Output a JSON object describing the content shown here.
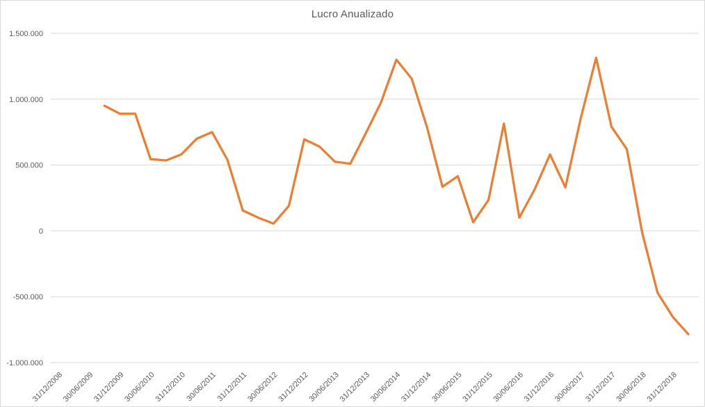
{
  "chart_data": {
    "type": "line",
    "title": "Lucro Anualizado",
    "legend": false,
    "grid": true,
    "colors": {
      "line": "#ED7D31",
      "gridline": "#D9D9D9",
      "text": "#595959",
      "border": "#D9D9D9",
      "background": "#FFFFFF"
    },
    "y_axis": {
      "min": -1000000,
      "max": 1500000,
      "step": 500000,
      "tick_labels": [
        "1.500.000",
        "1.000.000",
        "500.000",
        "0",
        "-500.000",
        "-1.000.000"
      ],
      "tick_values": [
        1500000,
        1000000,
        500000,
        0,
        -500000,
        -1000000
      ]
    },
    "x_axis": {
      "categories_total": 42,
      "first_category": "31/12/2008",
      "frequency": "quarterly",
      "tick_every": 2,
      "tick_labels": [
        "31/12/2008",
        "30/06/2009",
        "31/12/2009",
        "30/06/2010",
        "31/12/2010",
        "30/06/2011",
        "31/12/2011",
        "30/06/2012",
        "31/12/2012",
        "30/06/2013",
        "31/12/2013",
        "30/06/2014",
        "31/12/2014",
        "30/06/2015",
        "31/12/2015",
        "30/06/2016",
        "31/12/2016",
        "30/06/2017",
        "31/12/2017",
        "30/06/2018",
        "31/12/2018"
      ],
      "data_start_index": 3
    },
    "series": [
      {
        "name": "Lucro Anualizado",
        "color": "#ED7D31",
        "points": [
          {
            "date": "30/09/2009",
            "value": 950000
          },
          {
            "date": "31/12/2009",
            "value": 890000
          },
          {
            "date": "31/03/2010",
            "value": 890000
          },
          {
            "date": "30/06/2010",
            "value": 545000
          },
          {
            "date": "30/09/2010",
            "value": 535000
          },
          {
            "date": "31/12/2010",
            "value": 580000
          },
          {
            "date": "31/03/2011",
            "value": 700000
          },
          {
            "date": "30/06/2011",
            "value": 750000
          },
          {
            "date": "30/09/2011",
            "value": 540000
          },
          {
            "date": "31/12/2011",
            "value": 155000
          },
          {
            "date": "31/03/2012",
            "value": 100000
          },
          {
            "date": "30/06/2012",
            "value": 55000
          },
          {
            "date": "30/09/2012",
            "value": 190000
          },
          {
            "date": "31/12/2012",
            "value": 695000
          },
          {
            "date": "31/03/2013",
            "value": 640000
          },
          {
            "date": "30/06/2013",
            "value": 525000
          },
          {
            "date": "30/09/2013",
            "value": 510000
          },
          {
            "date": "31/12/2013",
            "value": 740000
          },
          {
            "date": "31/03/2014",
            "value": 975000
          },
          {
            "date": "30/06/2014",
            "value": 1300000
          },
          {
            "date": "30/09/2014",
            "value": 1155000
          },
          {
            "date": "31/12/2014",
            "value": 785000
          },
          {
            "date": "31/03/2015",
            "value": 335000
          },
          {
            "date": "30/06/2015",
            "value": 415000
          },
          {
            "date": "30/09/2015",
            "value": 65000
          },
          {
            "date": "31/12/2015",
            "value": 235000
          },
          {
            "date": "31/03/2016",
            "value": 815000
          },
          {
            "date": "30/06/2016",
            "value": 100000
          },
          {
            "date": "30/09/2016",
            "value": 315000
          },
          {
            "date": "31/12/2016",
            "value": 580000
          },
          {
            "date": "31/03/2017",
            "value": 330000
          },
          {
            "date": "30/06/2017",
            "value": 855000
          },
          {
            "date": "30/09/2017",
            "value": 1315000
          },
          {
            "date": "31/12/2017",
            "value": 790000
          },
          {
            "date": "31/03/2018",
            "value": 620000
          },
          {
            "date": "30/06/2018",
            "value": -15000
          },
          {
            "date": "30/09/2018",
            "value": -470000
          },
          {
            "date": "31/12/2018",
            "value": -655000
          },
          {
            "date": "31/03/2019",
            "value": -785000
          }
        ]
      }
    ]
  }
}
